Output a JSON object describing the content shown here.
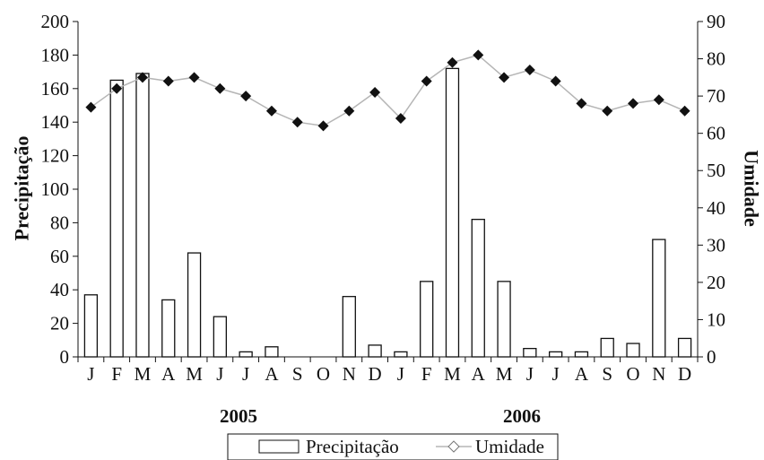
{
  "chart_data": {
    "type": "bar",
    "categories": [
      "J",
      "F",
      "M",
      "A",
      "M",
      "J",
      "J",
      "A",
      "S",
      "O",
      "N",
      "D",
      "J",
      "F",
      "M",
      "A",
      "M",
      "J",
      "J",
      "A",
      "S",
      "O",
      "N",
      "D"
    ],
    "groups": [
      "2005",
      "2006"
    ],
    "series": [
      {
        "name": "Precipitação",
        "type": "bar",
        "axis": "left",
        "values": [
          37,
          165,
          169,
          34,
          62,
          24,
          3,
          6,
          0,
          0,
          36,
          7,
          3,
          45,
          172,
          82,
          45,
          5,
          3,
          3,
          11,
          8,
          70,
          11
        ]
      },
      {
        "name": "Umidade",
        "type": "line",
        "axis": "right",
        "values": [
          67,
          72,
          75,
          74,
          75,
          72,
          70,
          66,
          63,
          62,
          66,
          71,
          64,
          74,
          79,
          81,
          75,
          77,
          74,
          68,
          66,
          68,
          69,
          66
        ]
      }
    ],
    "ylabel": "Precipitação",
    "y2label": "Umidade",
    "ylim": [
      0,
      200
    ],
    "y2lim": [
      0,
      90
    ],
    "yticks": [
      "0",
      "20",
      "40",
      "60",
      "80",
      "100",
      "120",
      "140",
      "160",
      "180",
      "200"
    ],
    "y2ticks": [
      "0",
      "10",
      "20",
      "30",
      "40",
      "50",
      "60",
      "70",
      "80",
      "90"
    ],
    "legend_position": "bottom",
    "grid": false,
    "colors": {
      "bar_fill": "#ffffff",
      "bar_stroke": "#111111",
      "line": "#b5b5b5",
      "marker": "#111111",
      "axis": "#111111"
    }
  }
}
